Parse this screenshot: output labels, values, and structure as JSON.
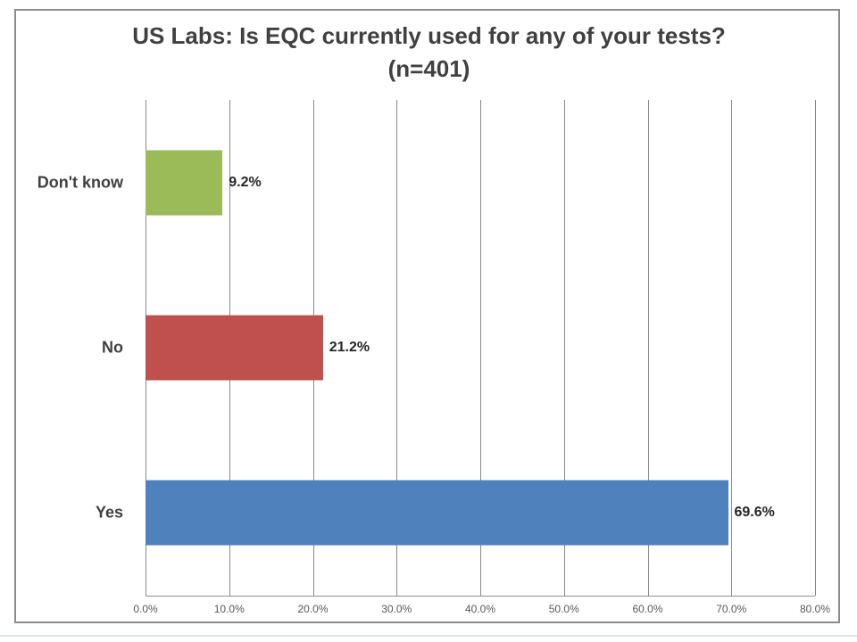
{
  "chart_data": {
    "type": "bar",
    "orientation": "horizontal",
    "title": "US Labs: Is EQC currently used for any of your tests?",
    "subtitle": "(n=401)",
    "categories": [
      "Don't know",
      "No",
      "Yes"
    ],
    "values": [
      9.2,
      21.2,
      69.6
    ],
    "value_labels": [
      "9.2%",
      "21.2%",
      "69.6%"
    ],
    "bar_colors": [
      "#9BBB59",
      "#C0504D",
      "#4F81BD"
    ],
    "x_ticks": [
      "0.0%",
      "10.0%",
      "20.0%",
      "30.0%",
      "40.0%",
      "50.0%",
      "60.0%",
      "70.0%",
      "80.0%"
    ],
    "xlim": [
      0,
      80
    ],
    "grid": true,
    "legend": "none"
  },
  "colors": {
    "title_text": "#404040",
    "category_text": "#3F3F3F",
    "value_text": "#262626",
    "tick_text": "#595959",
    "gridline": "#898989",
    "axis_line": "#8C8C8C",
    "chart_border": "#8C8C8C",
    "background": "#FFFFFF"
  }
}
